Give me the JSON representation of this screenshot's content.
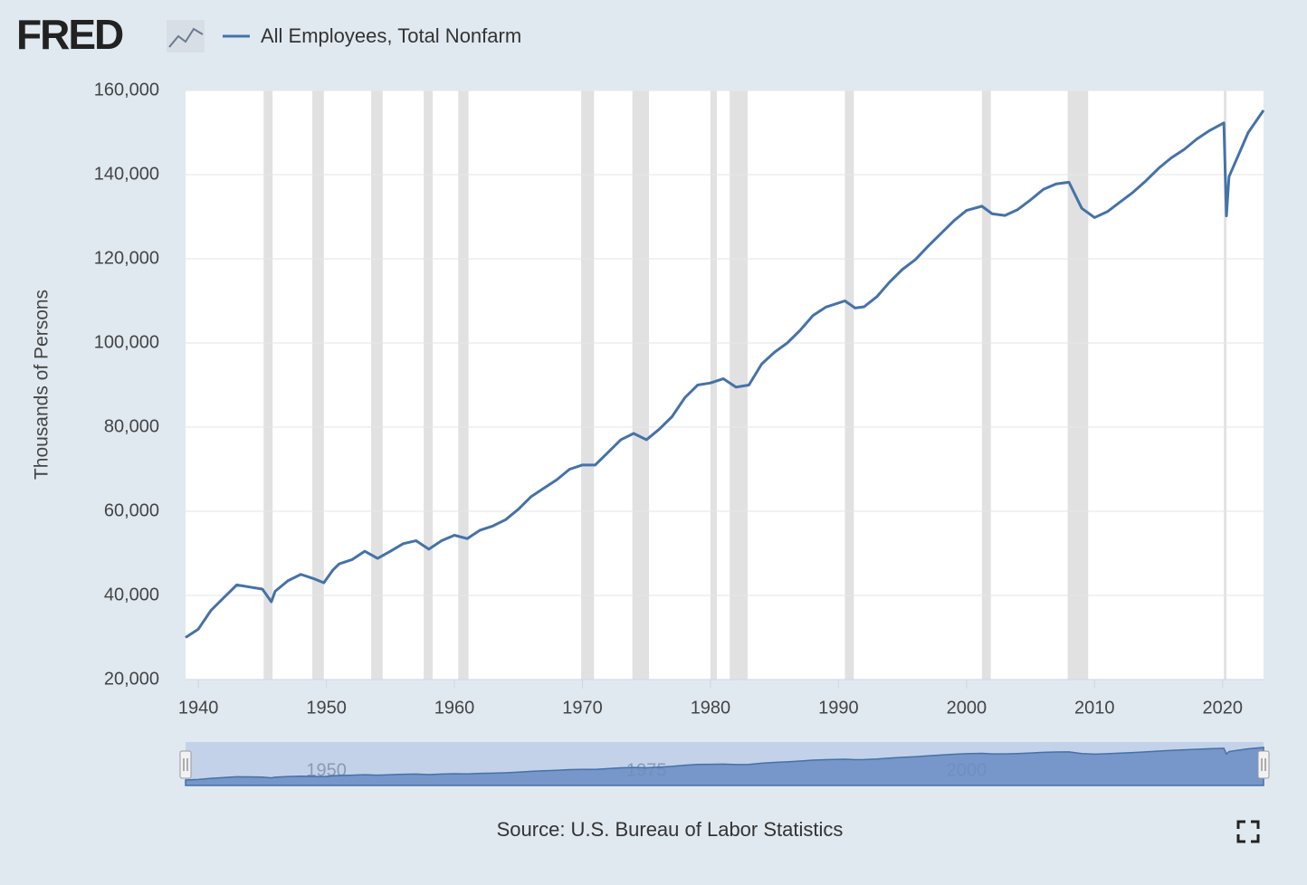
{
  "logo": "FRED",
  "chart_data": {
    "type": "line",
    "ylabel": "Thousands of Persons",
    "source": "Source: U.S. Bureau of Labor Statistics",
    "xlim": [
      1939,
      2023.2
    ],
    "xticks": [
      1940,
      1950,
      1960,
      1970,
      1980,
      1990,
      2000,
      2010,
      2020
    ],
    "ylim": [
      20000,
      160000
    ],
    "yticks": [
      {
        "value": 20000,
        "label": "20,000"
      },
      {
        "value": 40000,
        "label": "40,000"
      },
      {
        "value": 60000,
        "label": "60,000"
      },
      {
        "value": 80000,
        "label": "80,000"
      },
      {
        "value": 100000,
        "label": "100,000"
      },
      {
        "value": 120000,
        "label": "120,000"
      },
      {
        "value": 140000,
        "label": "140,000"
      },
      {
        "value": 160000,
        "label": "160,000"
      }
    ],
    "grid": true,
    "navigator_ticks": [
      1950,
      1975,
      2000
    ],
    "recessions": [
      [
        1945.1,
        1945.8
      ],
      [
        1948.9,
        1949.8
      ],
      [
        1953.5,
        1954.4
      ],
      [
        1957.6,
        1958.3
      ],
      [
        1960.3,
        1961.1
      ],
      [
        1969.9,
        1970.9
      ],
      [
        1973.9,
        1975.2
      ],
      [
        1980.0,
        1980.5
      ],
      [
        1981.5,
        1982.9
      ],
      [
        1990.5,
        1991.2
      ],
      [
        2001.2,
        2001.9
      ],
      [
        2007.9,
        2009.5
      ],
      [
        2020.1,
        2020.3
      ]
    ],
    "x": [
      1939.0,
      1940,
      1941,
      1942,
      1943,
      1944,
      1945.0,
      1945.7,
      1946,
      1947,
      1948,
      1949,
      1949.8,
      1950.5,
      1951,
      1952,
      1953,
      1954,
      1955,
      1956,
      1957,
      1958,
      1959,
      1960,
      1961,
      1962,
      1963,
      1964,
      1965,
      1966,
      1967,
      1968,
      1969,
      1970,
      1971,
      1972,
      1973,
      1974,
      1975,
      1976,
      1977,
      1978,
      1979,
      1980,
      1981,
      1982,
      1983,
      1984,
      1985,
      1986,
      1987,
      1988,
      1989,
      1990.5,
      1991.3,
      1992,
      1993,
      1994,
      1995,
      1996,
      1997,
      1998,
      1999,
      2000,
      2001.2,
      2002,
      2003,
      2004,
      2005,
      2006,
      2007,
      2008,
      2009,
      2010,
      2011,
      2012,
      2013,
      2014,
      2015,
      2016,
      2017,
      2018,
      2019,
      2020.1,
      2020.3,
      2020.5,
      2021,
      2022,
      2023.2
    ],
    "series": [
      {
        "name": "All Employees, Total Nonfarm",
        "color": "#4572a7",
        "values": [
          30000,
          32000,
          36500,
          39500,
          42500,
          42000,
          41500,
          38500,
          41000,
          43500,
          45000,
          44000,
          43000,
          46000,
          47500,
          48500,
          50500,
          48800,
          50500,
          52300,
          53000,
          51000,
          53000,
          54300,
          53500,
          55500,
          56500,
          58000,
          60500,
          63500,
          65500,
          67500,
          70000,
          71000,
          71000,
          74000,
          77000,
          78500,
          77000,
          79500,
          82500,
          87000,
          90000,
          90500,
          91500,
          89500,
          90000,
          95000,
          97800,
          100000,
          103000,
          106500,
          108500,
          110000,
          108300,
          108600,
          111000,
          114500,
          117500,
          119800,
          123000,
          126000,
          129000,
          131500,
          132500,
          130700,
          130300,
          131700,
          134000,
          136500,
          137800,
          138200,
          132000,
          129800,
          131200,
          133500,
          135800,
          138500,
          141500,
          144000,
          146000,
          148500,
          150500,
          152300,
          130200,
          139500,
          143000,
          150000,
          155300
        ]
      }
    ]
  }
}
